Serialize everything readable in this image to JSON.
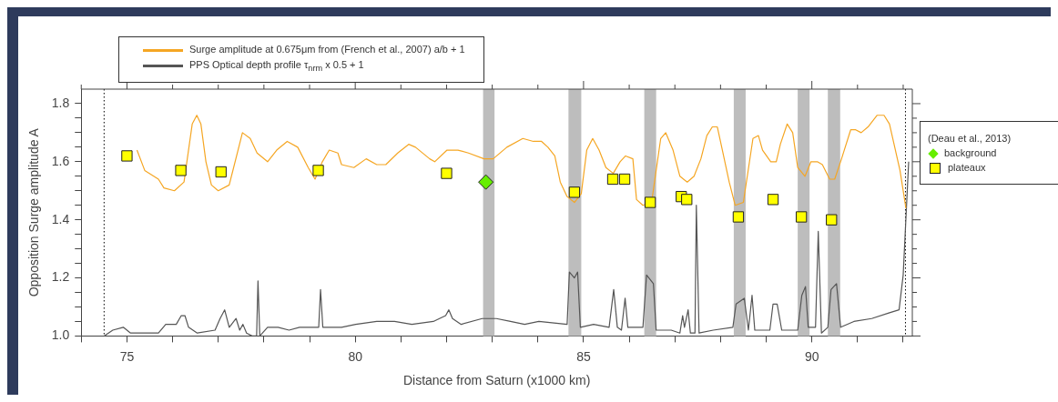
{
  "chart_data": {
    "type": "line",
    "xlabel": "Distance from Saturn (x1000 km)",
    "ylabel": "Opposition Surge amplitude A",
    "legend": "right",
    "legend_title": "(Deau et al., 2013)",
    "grid": false,
    "xlim": [
      74,
      92.2
    ],
    "ylim": [
      1.0,
      1.85
    ],
    "xticks": [
      {
        "value": 74,
        "label": null
      },
      75,
      {
        "value": 76,
        "label": null
      },
      {
        "value": 77,
        "label": null
      },
      {
        "value": 78,
        "label": null
      },
      {
        "value": 79,
        "label": null
      },
      80,
      {
        "value": 81,
        "label": null
      },
      {
        "value": 82,
        "label": null
      },
      {
        "value": 83,
        "label": null
      },
      {
        "value": 84,
        "label": null
      },
      85,
      {
        "value": 86,
        "label": null
      },
      {
        "value": 87,
        "label": null
      },
      {
        "value": 88,
        "label": null
      },
      {
        "value": 89,
        "label": null
      },
      90,
      {
        "value": 91,
        "label": null
      },
      {
        "value": 92,
        "label": null
      }
    ],
    "yticks": [
      {
        "value": 1.0,
        "label": "1.0"
      },
      {
        "value": 1.05,
        "label": null
      },
      {
        "value": 1.1,
        "label": null
      },
      {
        "value": 1.15,
        "label": null
      },
      {
        "value": 1.2,
        "label": "1.2"
      },
      {
        "value": 1.25,
        "label": null
      },
      {
        "value": 1.3,
        "label": null
      },
      {
        "value": 1.35,
        "label": null
      },
      {
        "value": 1.4,
        "label": "1.4"
      },
      {
        "value": 1.45,
        "label": null
      },
      {
        "value": 1.5,
        "label": null
      },
      {
        "value": 1.55,
        "label": null
      },
      {
        "value": 1.6,
        "label": "1.6"
      },
      {
        "value": 1.65,
        "label": null
      },
      {
        "value": 1.7,
        "label": null
      },
      {
        "value": 1.75,
        "label": null
      },
      {
        "value": 1.8,
        "label": "1.8"
      }
    ],
    "bands": [
      {
        "axis": "x",
        "from": 82.8,
        "to": 83.05,
        "color": "#bdbdbd"
      },
      {
        "axis": "x",
        "from": 84.67,
        "to": 84.95,
        "color": "#bdbdbd"
      },
      {
        "axis": "x",
        "from": 86.33,
        "to": 86.59,
        "color": "#bdbdbd"
      },
      {
        "axis": "x",
        "from": 88.29,
        "to": 88.55,
        "color": "#bdbdbd"
      },
      {
        "axis": "x",
        "from": 89.69,
        "to": 89.95,
        "color": "#bdbdbd"
      },
      {
        "axis": "x",
        "from": 90.35,
        "to": 90.62,
        "color": "#bdbdbd"
      }
    ],
    "ref_lines": [
      {
        "axis": "x",
        "value": 74.5,
        "color": "#000000",
        "line_style": "dotted"
      },
      {
        "axis": "x",
        "value": 92.05,
        "color": "#000000",
        "line_style": "dotted"
      }
    ],
    "series": [
      {
        "name": "Surge amplitude at 0.675μm from (French et al., 2007) a/b + 1",
        "type": "line",
        "color": "#f5a623",
        "marker": "none",
        "line_style": "solid",
        "x": [
          75.22,
          75.39,
          75.69,
          75.81,
          76.04,
          76.25,
          76.43,
          76.53,
          76.62,
          76.73,
          76.85,
          77.0,
          77.24,
          77.53,
          77.7,
          77.85,
          78.08,
          78.28,
          78.51,
          78.74,
          78.97,
          79.12,
          79.28,
          79.43,
          79.62,
          79.7,
          79.97,
          80.24,
          80.47,
          80.67,
          80.93,
          81.17,
          81.32,
          81.63,
          81.74,
          82.01,
          82.25,
          82.48,
          82.82,
          83.02,
          83.32,
          83.67,
          83.9,
          84.08,
          84.22,
          84.37,
          84.49,
          84.64,
          84.8,
          84.95,
          85.07,
          85.2,
          85.34,
          85.49,
          85.65,
          85.8,
          85.92,
          86.08,
          86.16,
          86.3,
          86.49,
          86.69,
          86.8,
          86.96,
          87.11,
          87.27,
          87.42,
          87.57,
          87.7,
          87.82,
          87.93,
          88.04,
          88.19,
          88.32,
          88.5,
          88.71,
          88.83,
          88.92,
          89.1,
          89.22,
          89.31,
          89.46,
          89.58,
          89.69,
          89.85,
          89.98,
          90.12,
          90.23,
          90.39,
          90.5,
          90.65,
          90.85,
          90.96,
          91.08,
          91.23,
          91.43,
          91.58,
          91.7,
          91.93,
          92.06
        ],
        "values": [
          1.64,
          1.57,
          1.54,
          1.51,
          1.5,
          1.53,
          1.73,
          1.76,
          1.73,
          1.6,
          1.52,
          1.5,
          1.52,
          1.7,
          1.68,
          1.63,
          1.6,
          1.64,
          1.67,
          1.65,
          1.58,
          1.54,
          1.6,
          1.64,
          1.63,
          1.59,
          1.58,
          1.61,
          1.59,
          1.59,
          1.63,
          1.66,
          1.65,
          1.61,
          1.6,
          1.64,
          1.64,
          1.63,
          1.61,
          1.61,
          1.65,
          1.68,
          1.67,
          1.67,
          1.65,
          1.62,
          1.53,
          1.48,
          1.46,
          1.49,
          1.64,
          1.68,
          1.64,
          1.58,
          1.56,
          1.6,
          1.62,
          1.61,
          1.47,
          1.45,
          1.46,
          1.68,
          1.7,
          1.64,
          1.55,
          1.53,
          1.55,
          1.61,
          1.69,
          1.72,
          1.72,
          1.64,
          1.53,
          1.45,
          1.46,
          1.68,
          1.69,
          1.64,
          1.6,
          1.6,
          1.66,
          1.73,
          1.7,
          1.58,
          1.55,
          1.6,
          1.6,
          1.59,
          1.54,
          1.54,
          1.61,
          1.71,
          1.71,
          1.7,
          1.72,
          1.76,
          1.76,
          1.73,
          1.57,
          1.44
        ]
      },
      {
        "name": "PPS Optical depth profile τ$_{nrm}$ x 0.5 + 1",
        "type": "line",
        "color": "#555555",
        "marker": "none",
        "line_style": "solid",
        "x": [
          74.5,
          74.69,
          74.92,
          75.08,
          75.69,
          75.85,
          76.08,
          76.19,
          76.27,
          76.35,
          76.54,
          76.93,
          77.04,
          77.14,
          77.24,
          77.39,
          77.47,
          77.54,
          77.62,
          77.74,
          77.84,
          77.87,
          77.91,
          78.08,
          78.31,
          78.55,
          78.78,
          79.2,
          79.24,
          79.29,
          79.7,
          80.01,
          80.47,
          80.86,
          81.24,
          81.71,
          81.98,
          82.05,
          82.13,
          82.32,
          82.78,
          83.09,
          83.4,
          83.71,
          84.02,
          84.64,
          84.69,
          84.8,
          84.87,
          84.93,
          85.22,
          85.56,
          85.66,
          85.74,
          85.83,
          85.91,
          85.97,
          86.3,
          86.38,
          86.53,
          86.59,
          86.92,
          87.11,
          87.17,
          87.21,
          87.29,
          87.34,
          87.44,
          87.47,
          87.53,
          87.84,
          88.27,
          88.34,
          88.52,
          88.61,
          88.69,
          88.75,
          89.08,
          89.15,
          89.24,
          89.34,
          89.5,
          89.69,
          89.78,
          89.86,
          89.92,
          90.08,
          90.14,
          90.21,
          90.35,
          90.42,
          90.54,
          90.63,
          90.92,
          91.31,
          91.7,
          91.91,
          92.0,
          92.12
        ],
        "values": [
          1.0,
          1.02,
          1.03,
          1.01,
          1.01,
          1.04,
          1.04,
          1.07,
          1.07,
          1.03,
          1.01,
          1.02,
          1.06,
          1.09,
          1.03,
          1.06,
          1.02,
          1.04,
          1.01,
          1.0,
          1.0,
          1.19,
          1.0,
          1.03,
          1.03,
          1.02,
          1.03,
          1.03,
          1.16,
          1.03,
          1.03,
          1.04,
          1.05,
          1.05,
          1.04,
          1.05,
          1.07,
          1.09,
          1.06,
          1.04,
          1.06,
          1.06,
          1.05,
          1.04,
          1.05,
          1.04,
          1.22,
          1.2,
          1.22,
          1.03,
          1.04,
          1.03,
          1.16,
          1.03,
          1.02,
          1.13,
          1.03,
          1.03,
          1.21,
          1.18,
          1.02,
          1.02,
          1.01,
          1.07,
          1.03,
          1.09,
          1.01,
          1.01,
          1.45,
          1.01,
          1.02,
          1.03,
          1.11,
          1.13,
          1.02,
          1.14,
          1.02,
          1.02,
          1.11,
          1.11,
          1.02,
          1.02,
          1.02,
          1.14,
          1.17,
          1.03,
          1.03,
          1.36,
          1.01,
          1.03,
          1.16,
          1.18,
          1.03,
          1.05,
          1.06,
          1.08,
          1.09,
          1.21,
          1.6
        ]
      },
      {
        "name": "background",
        "type": "scatter",
        "color": "#66ee00",
        "marker": "diamond",
        "x": [
          82.86
        ],
        "values": [
          1.53
        ]
      },
      {
        "name": "plateaux",
        "type": "scatter",
        "color": "#ffff00",
        "marker": "square",
        "x": [
          75.0,
          76.18,
          77.06,
          79.19,
          82.0,
          84.8,
          85.64,
          85.9,
          86.46,
          87.14,
          87.26,
          88.39,
          89.15,
          89.77,
          90.43
        ],
        "values": [
          1.62,
          1.57,
          1.565,
          1.57,
          1.56,
          1.495,
          1.54,
          1.54,
          1.46,
          1.48,
          1.47,
          1.41,
          1.47,
          1.41,
          1.4
        ]
      }
    ]
  }
}
